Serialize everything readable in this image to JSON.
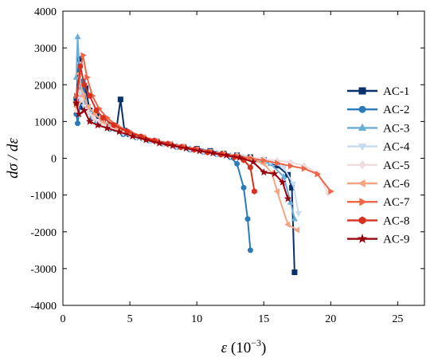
{
  "chart_data": {
    "type": "line",
    "xlabel_symbol": "ε",
    "xlabel_unit": " (10",
    "xlabel_exp": "−3",
    "xlabel_close": ")",
    "ylabel": "dσ / dε",
    "xlim": [
      0,
      27
    ],
    "ylim": [
      -4000,
      4000
    ],
    "x_ticks": [
      "0",
      "5",
      "10",
      "15",
      "20",
      "25"
    ],
    "x_tick_values": [
      0,
      5,
      10,
      15,
      20,
      25
    ],
    "y_ticks": [
      "4000",
      "3000",
      "2000",
      "1000",
      "0",
      "-1000",
      "-2000",
      "-3000",
      "-4000"
    ],
    "y_tick_values": [
      4000,
      3000,
      2000,
      1000,
      0,
      -1000,
      -2000,
      -3000,
      -4000
    ],
    "legend_position": "right",
    "series": [
      {
        "name": "AC-1",
        "color": "#08306b",
        "marker": "square",
        "points": [
          [
            1.0,
            1600
          ],
          [
            1.2,
            2700
          ],
          [
            1.4,
            1400
          ],
          [
            1.7,
            1900
          ],
          [
            2.0,
            1300
          ],
          [
            2.5,
            1150
          ],
          [
            3.0,
            1000
          ],
          [
            3.5,
            900
          ],
          [
            4.0,
            800
          ],
          [
            4.3,
            1600
          ],
          [
            4.6,
            750
          ],
          [
            5.0,
            650
          ],
          [
            6.0,
            550
          ],
          [
            7.0,
            460
          ],
          [
            8.0,
            380
          ],
          [
            9.0,
            310
          ],
          [
            10.0,
            260
          ],
          [
            11.0,
            200
          ],
          [
            12.0,
            130
          ],
          [
            13.0,
            80
          ],
          [
            14.0,
            30
          ],
          [
            15.0,
            -50
          ],
          [
            16.0,
            -200
          ],
          [
            16.8,
            -450
          ],
          [
            17.1,
            -800
          ],
          [
            17.3,
            -3100
          ]
        ]
      },
      {
        "name": "AC-2",
        "color": "#2b7bba",
        "marker": "circle",
        "points": [
          [
            1.0,
            1200
          ],
          [
            1.1,
            950
          ],
          [
            1.5,
            2100
          ],
          [
            1.8,
            1300
          ],
          [
            2.2,
            1100
          ],
          [
            2.8,
            950
          ],
          [
            3.5,
            800
          ],
          [
            4.5,
            650
          ],
          [
            5.5,
            560
          ],
          [
            6.5,
            470
          ],
          [
            7.5,
            390
          ],
          [
            8.5,
            300
          ],
          [
            9.5,
            230
          ],
          [
            10.5,
            170
          ],
          [
            11.5,
            110
          ],
          [
            12.5,
            30
          ],
          [
            13.0,
            -150
          ],
          [
            13.5,
            -800
          ],
          [
            13.8,
            -1650
          ],
          [
            14.0,
            -2500
          ]
        ]
      },
      {
        "name": "AC-3",
        "color": "#6baed6",
        "marker": "triangle-up",
        "points": [
          [
            1.0,
            2200
          ],
          [
            1.1,
            3300
          ],
          [
            1.3,
            1900
          ],
          [
            1.6,
            1500
          ],
          [
            2.0,
            1250
          ],
          [
            2.5,
            1000
          ],
          [
            3.5,
            850
          ],
          [
            4.5,
            700
          ],
          [
            5.5,
            580
          ],
          [
            6.5,
            480
          ],
          [
            7.5,
            400
          ],
          [
            8.5,
            330
          ],
          [
            9.5,
            260
          ],
          [
            10.5,
            190
          ],
          [
            11.5,
            130
          ],
          [
            12.5,
            70
          ],
          [
            13.5,
            10
          ],
          [
            14.5,
            -60
          ],
          [
            15.5,
            -150
          ],
          [
            16.5,
            -500
          ],
          [
            17.0,
            -1200
          ],
          [
            17.3,
            -1650
          ]
        ]
      },
      {
        "name": "AC-4",
        "color": "#c6dbef",
        "marker": "triangle-down",
        "points": [
          [
            1.0,
            1500
          ],
          [
            1.3,
            1800
          ],
          [
            1.6,
            1400
          ],
          [
            2.0,
            1200
          ],
          [
            2.6,
            1000
          ],
          [
            3.5,
            820
          ],
          [
            4.5,
            680
          ],
          [
            5.5,
            560
          ],
          [
            6.5,
            460
          ],
          [
            7.5,
            380
          ],
          [
            8.5,
            310
          ],
          [
            9.5,
            240
          ],
          [
            10.5,
            170
          ],
          [
            11.5,
            110
          ],
          [
            12.5,
            60
          ],
          [
            13.5,
            10
          ],
          [
            14.5,
            -40
          ],
          [
            15.5,
            -100
          ],
          [
            16.5,
            -250
          ],
          [
            17.2,
            -700
          ],
          [
            17.6,
            -1500
          ]
        ]
      },
      {
        "name": "AC-5",
        "color": "#f0dcdc",
        "marker": "diamond",
        "points": [
          [
            1.0,
            1300
          ],
          [
            1.4,
            1600
          ],
          [
            1.8,
            1300
          ],
          [
            2.3,
            1100
          ],
          [
            3.0,
            930
          ],
          [
            4.0,
            780
          ],
          [
            5.0,
            640
          ],
          [
            6.0,
            530
          ],
          [
            7.0,
            440
          ],
          [
            8.0,
            360
          ],
          [
            9.0,
            290
          ],
          [
            10.0,
            230
          ],
          [
            11.0,
            170
          ],
          [
            12.0,
            120
          ],
          [
            13.0,
            70
          ],
          [
            14.0,
            20
          ],
          [
            15.0,
            -20
          ],
          [
            16.0,
            -60
          ],
          [
            17.0,
            -110
          ],
          [
            18.0,
            -200
          ],
          [
            19.0,
            -400
          ],
          [
            19.8,
            -950
          ]
        ]
      },
      {
        "name": "AC-6",
        "color": "#f4a582",
        "marker": "triangle-left",
        "points": [
          [
            1.0,
            1400
          ],
          [
            1.2,
            2300
          ],
          [
            1.5,
            1700
          ],
          [
            1.9,
            1400
          ],
          [
            2.4,
            1200
          ],
          [
            3.0,
            1000
          ],
          [
            4.0,
            830
          ],
          [
            5.0,
            690
          ],
          [
            6.0,
            570
          ],
          [
            7.0,
            470
          ],
          [
            8.0,
            390
          ],
          [
            9.0,
            310
          ],
          [
            10.0,
            240
          ],
          [
            11.0,
            170
          ],
          [
            12.0,
            110
          ],
          [
            13.0,
            50
          ],
          [
            14.0,
            -20
          ],
          [
            15.0,
            -150
          ],
          [
            15.6,
            -400
          ],
          [
            16.0,
            -900
          ],
          [
            16.8,
            -1800
          ],
          [
            17.5,
            -1950
          ]
        ]
      },
      {
        "name": "AC-7",
        "color": "#ef6548",
        "marker": "triangle-right",
        "points": [
          [
            1.0,
            1700
          ],
          [
            1.5,
            2800
          ],
          [
            1.8,
            2200
          ],
          [
            2.2,
            1700
          ],
          [
            2.7,
            1350
          ],
          [
            3.3,
            1100
          ],
          [
            4.0,
            900
          ],
          [
            5.0,
            720
          ],
          [
            6.0,
            590
          ],
          [
            7.0,
            480
          ],
          [
            8.0,
            400
          ],
          [
            9.0,
            320
          ],
          [
            10.0,
            250
          ],
          [
            11.0,
            180
          ],
          [
            12.0,
            120
          ],
          [
            13.0,
            60
          ],
          [
            14.0,
            0
          ],
          [
            15.0,
            -60
          ],
          [
            16.0,
            -130
          ],
          [
            17.0,
            -210
          ],
          [
            18.0,
            -280
          ],
          [
            19.0,
            -430
          ],
          [
            20.0,
            -900
          ]
        ]
      },
      {
        "name": "AC-8",
        "color": "#d7301f",
        "marker": "hexagon",
        "points": [
          [
            1.0,
            1500
          ],
          [
            1.3,
            2500
          ],
          [
            1.6,
            2000
          ],
          [
            2.0,
            1700
          ],
          [
            2.5,
            1300
          ],
          [
            3.0,
            1100
          ],
          [
            3.8,
            900
          ],
          [
            4.8,
            730
          ],
          [
            5.8,
            590
          ],
          [
            6.8,
            480
          ],
          [
            7.8,
            390
          ],
          [
            8.8,
            300
          ],
          [
            9.8,
            230
          ],
          [
            10.8,
            160
          ],
          [
            11.8,
            100
          ],
          [
            12.8,
            30
          ],
          [
            13.5,
            -50
          ],
          [
            14.0,
            -250
          ],
          [
            14.3,
            -900
          ]
        ]
      },
      {
        "name": "AC-9",
        "color": "#99000d",
        "marker": "star",
        "points": [
          [
            1.0,
            1500
          ],
          [
            1.2,
            1200
          ],
          [
            1.6,
            1300
          ],
          [
            2.0,
            1000
          ],
          [
            2.6,
            900
          ],
          [
            3.3,
            820
          ],
          [
            4.2,
            720
          ],
          [
            5.2,
            600
          ],
          [
            6.2,
            500
          ],
          [
            7.2,
            410
          ],
          [
            8.2,
            340
          ],
          [
            9.2,
            270
          ],
          [
            10.2,
            200
          ],
          [
            11.2,
            140
          ],
          [
            12.2,
            80
          ],
          [
            13.2,
            20
          ],
          [
            14.2,
            -100
          ],
          [
            15.0,
            -380
          ],
          [
            15.8,
            -420
          ],
          [
            16.4,
            -650
          ],
          [
            16.8,
            -1100
          ]
        ]
      }
    ]
  }
}
